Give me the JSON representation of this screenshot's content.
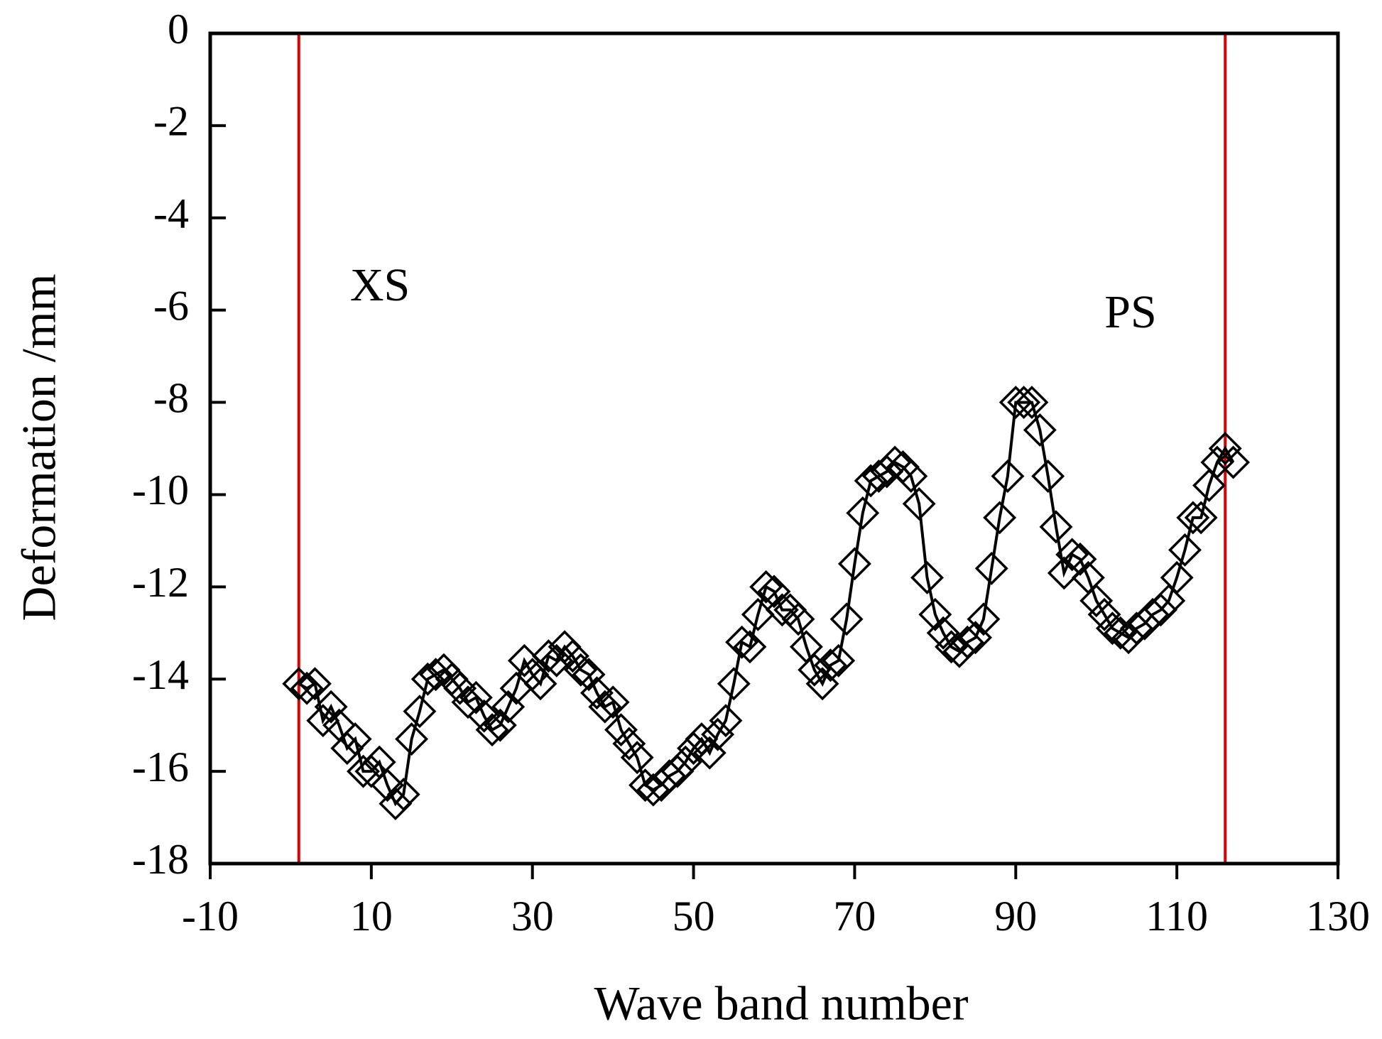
{
  "chart_data": {
    "type": "line",
    "xlabel": "Wave band number",
    "ylabel": "Deformation /mm",
    "annotations": [
      "XS",
      "PS"
    ],
    "vlines": [
      1,
      116
    ],
    "vline_color": "#e00000",
    "xlim": [
      -10,
      130
    ],
    "xticks": [
      -10,
      10,
      30,
      50,
      70,
      90,
      110,
      130
    ],
    "ylim": [
      -18,
      0
    ],
    "yticks": [
      0,
      -2,
      -4,
      -6,
      -8,
      -10,
      -12,
      -14,
      -16,
      -18
    ],
    "marker": "diamond",
    "series": [
      {
        "color": "#000000",
        "x": [
          1,
          2,
          3,
          4,
          5,
          6,
          7,
          8,
          9,
          10,
          11,
          12,
          13,
          14,
          15,
          16,
          17,
          18,
          19,
          20,
          21,
          22,
          23,
          24,
          25,
          26,
          27,
          28,
          29,
          30,
          31,
          32,
          33,
          34,
          35,
          36,
          37,
          38,
          39,
          40,
          41,
          42,
          43,
          44,
          45,
          46,
          47,
          48,
          49,
          50,
          51,
          52,
          53,
          54,
          55,
          56,
          57,
          58,
          59,
          60,
          61,
          62,
          63,
          64,
          65,
          66,
          67,
          68,
          69,
          70,
          71,
          72,
          73,
          74,
          75,
          76,
          77,
          78,
          79,
          80,
          81,
          82,
          83,
          84,
          85,
          86,
          87,
          88,
          89,
          90,
          91,
          92,
          93,
          94,
          95,
          96,
          97,
          98,
          99,
          100,
          101,
          102,
          103,
          104,
          105,
          106,
          107,
          108,
          109,
          110,
          111,
          112,
          113,
          114,
          115,
          116,
          117
        ],
        "values": [
          -14.1,
          -14.2,
          -14.1,
          -14.9,
          -14.6,
          -15.0,
          -15.5,
          -15.3,
          -16.0,
          -16.0,
          -15.8,
          -16.3,
          -16.7,
          -16.5,
          -15.3,
          -14.7,
          -14.0,
          -13.9,
          -13.8,
          -14.0,
          -14.2,
          -14.5,
          -14.4,
          -14.8,
          -15.1,
          -15.0,
          -14.6,
          -14.2,
          -13.6,
          -13.9,
          -14.1,
          -13.5,
          -13.6,
          -13.3,
          -13.5,
          -13.8,
          -13.9,
          -14.3,
          -14.6,
          -14.5,
          -15.1,
          -15.4,
          -15.7,
          -16.3,
          -16.4,
          -16.3,
          -16.1,
          -16.0,
          -15.8,
          -15.5,
          -15.3,
          -15.6,
          -15.2,
          -14.9,
          -14.1,
          -13.2,
          -13.3,
          -12.6,
          -12.0,
          -12.1,
          -12.5,
          -12.5,
          -12.7,
          -13.3,
          -13.8,
          -14.1,
          -13.7,
          -13.6,
          -12.7,
          -11.5,
          -10.4,
          -9.7,
          -9.6,
          -9.5,
          -9.3,
          -9.4,
          -9.6,
          -10.2,
          -11.8,
          -12.6,
          -13.0,
          -13.3,
          -13.4,
          -13.2,
          -13.1,
          -12.7,
          -11.6,
          -10.5,
          -9.6,
          -8.0,
          -8.0,
          -8.0,
          -8.6,
          -9.6,
          -10.7,
          -11.7,
          -11.3,
          -11.4,
          -11.8,
          -12.3,
          -12.6,
          -12.9,
          -13.0,
          -13.1,
          -12.9,
          -12.8,
          -12.6,
          -12.5,
          -12.3,
          -11.8,
          -11.2,
          -10.5,
          -10.5,
          -9.8,
          -9.3,
          -9.0,
          -9.3
        ]
      }
    ]
  }
}
